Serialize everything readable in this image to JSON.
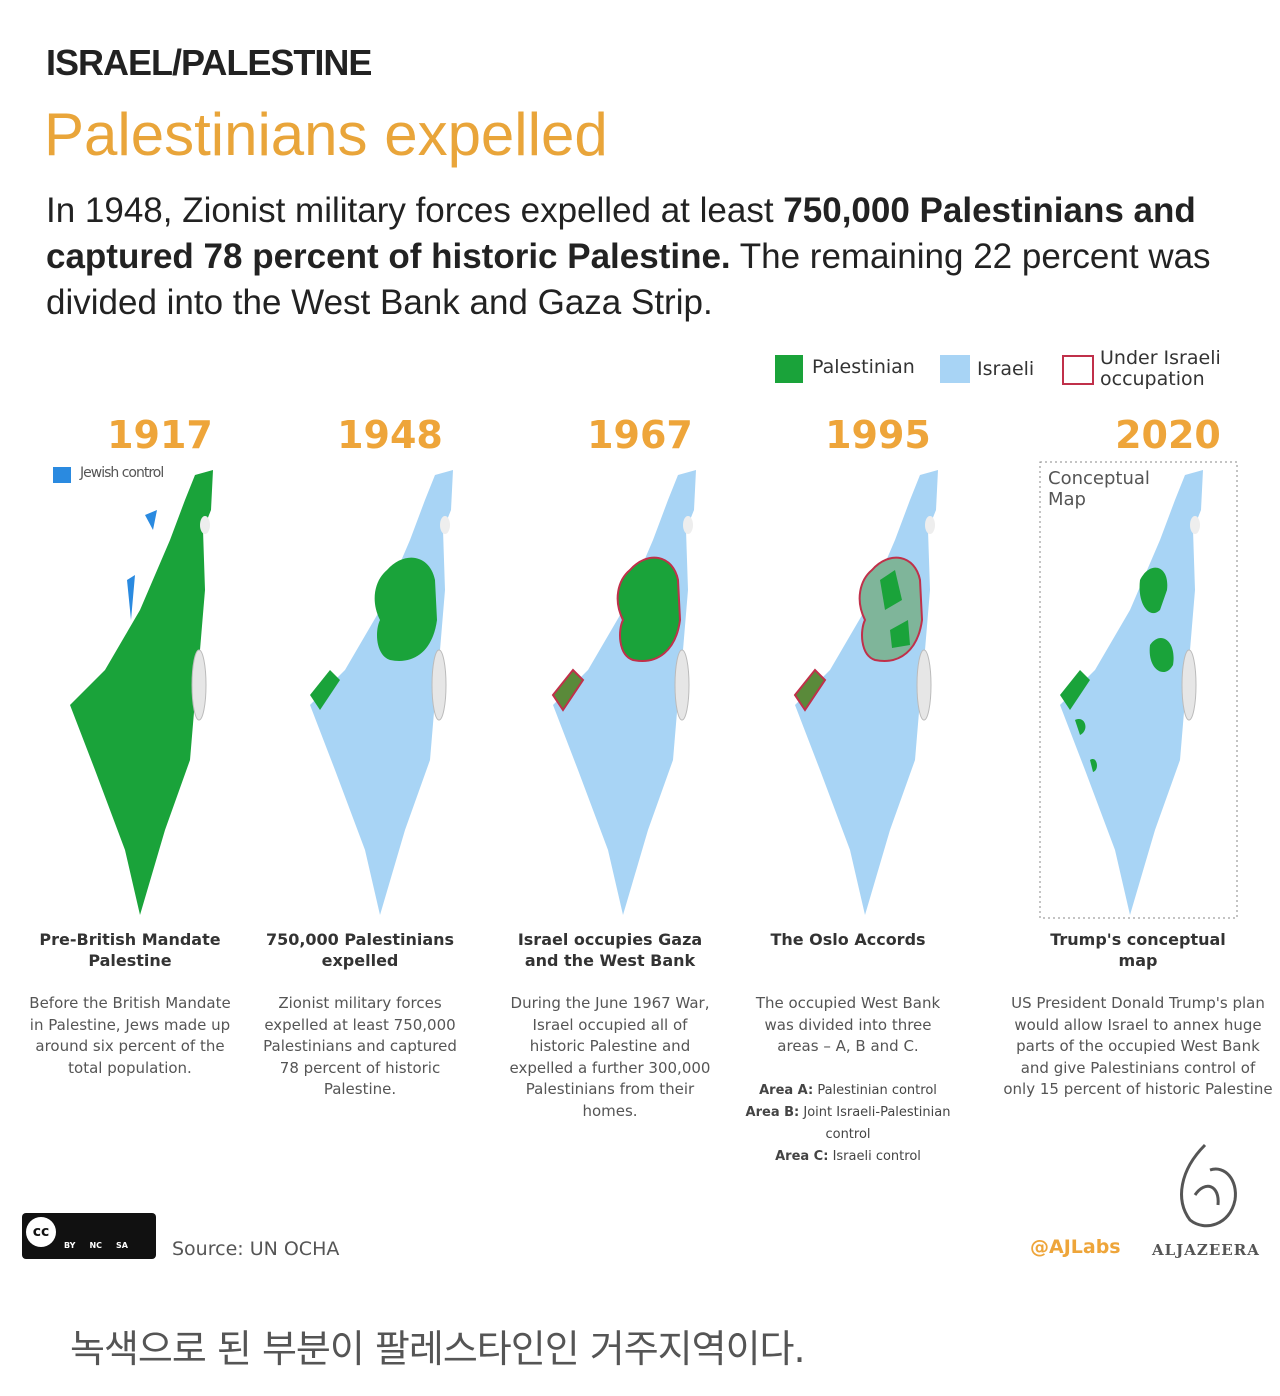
{
  "header": {
    "kicker": "ISRAEL/PALESTINE",
    "title": "Palestinians expelled"
  },
  "intro": {
    "lead": "In 1948, Zionist military forces expelled at least ",
    "bold": "750,000 Palestinians and captured 78 percent of historic Palestine.",
    "rest": " The remaining 22 percent was divided into the West Bank and Gaza Strip."
  },
  "legend": [
    {
      "label": "Palestinian"
    },
    {
      "label": "Israeli"
    },
    {
      "label": "Under Israeli occupation"
    }
  ],
  "maps": [
    {
      "year": "1917",
      "note": "Jewish control",
      "heading": "Pre-British Mandate Palestine",
      "description": "Before the British Mandate in Palestine, Jews made up around six percent of the total population."
    },
    {
      "year": "1948",
      "heading": "750,000 Palestinians expelled",
      "description": "Zionist military forces expelled at least 750,000 Palestinians and captured 78 percent of historic Palestine."
    },
    {
      "year": "1967",
      "heading": "Israel occupies Gaza and the West Bank",
      "description": "During the June 1967 War, Israel occupied all of historic Palestine and expelled a further 300,000 Palestinians from their homes."
    },
    {
      "year": "1995",
      "heading": "The Oslo Accords",
      "description": "The occupied West Bank was divided into three areas – A, B and C.",
      "areas": [
        {
          "label": "Area A:",
          "text": "Palestinian control"
        },
        {
          "label": "Area B:",
          "text": "Joint Israeli-Palestinian control"
        },
        {
          "label": "Area C:",
          "text": "Israeli control"
        }
      ]
    },
    {
      "year": "2020",
      "note": "Conceptual Map",
      "heading": "Trump's conceptual map",
      "description": "US President Donald Trump's plan would allow Israel to annex huge parts of the occupied West Bank and give Palestinians control of only 15 percent of historic Palestine"
    }
  ],
  "footer": {
    "license": "cc",
    "license_terms": [
      "BY",
      "NC",
      "SA"
    ],
    "source": "Source: UN OCHA",
    "handle": "@AJLabs",
    "brand": "ALJAZEERA"
  },
  "caption": "녹색으로 된 부분이 팔레스타인인 거주지역이다."
}
